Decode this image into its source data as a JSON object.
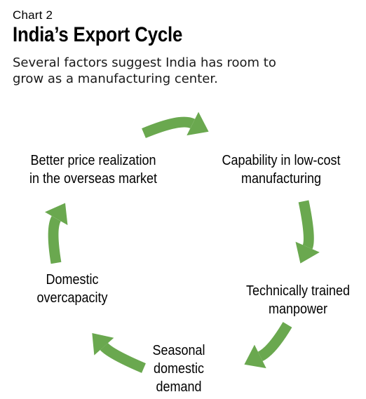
{
  "header": {
    "label": "Chart 2",
    "title": "India’s Export Cycle",
    "subtitle": "Several factors suggest India has room to grow as a manufacturing center."
  },
  "cycle": {
    "arrow_color": "#6aa84f",
    "direction": "clockwise",
    "nodes": [
      {
        "label": "Capability in low-cost\nmanufacturing"
      },
      {
        "label": "Technically trained\nmanpower"
      },
      {
        "label": "Seasonal\ndomestic\ndemand"
      },
      {
        "label": "Domestic\novercapacity"
      },
      {
        "label": "Better price realization\nin the overseas market"
      }
    ]
  }
}
